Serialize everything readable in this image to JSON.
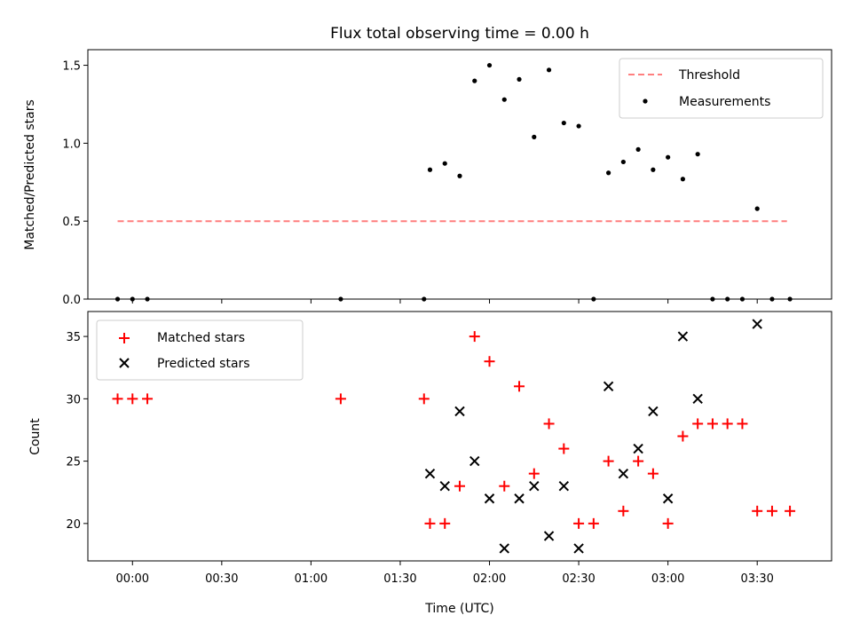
{
  "chart_data": [
    {
      "type": "scatter",
      "title": "Flux total observing time = 0.00 h",
      "xlabel": "",
      "ylabel": "Matched/Predicted stars",
      "xlim": [
        "23:45",
        "03:55"
      ],
      "ylim": [
        0,
        1.6
      ],
      "yticks": [
        "0.0",
        "0.5",
        "1.0",
        "1.5"
      ],
      "grid": false,
      "legend_position": "top-right",
      "threshold": {
        "name": "Threshold",
        "x_start": "23:55",
        "x_end": "03:40",
        "y": 0.5,
        "color": "#ff7f7f"
      },
      "series": [
        {
          "name": "Measurements",
          "color": "#000000",
          "x": [
            "23:55",
            "00:00",
            "00:05",
            "01:10",
            "01:38",
            "01:40",
            "01:45",
            "01:50",
            "01:55",
            "02:00",
            "02:05",
            "02:10",
            "02:15",
            "02:20",
            "02:25",
            "02:30",
            "02:35",
            "02:40",
            "02:45",
            "02:50",
            "02:55",
            "03:00",
            "03:05",
            "03:10",
            "03:15",
            "03:20",
            "03:25",
            "03:30",
            "03:35",
            "03:41"
          ],
          "y": [
            0,
            0,
            0,
            0,
            0,
            0.83,
            0.87,
            0.79,
            1.4,
            1.5,
            1.28,
            1.41,
            1.04,
            1.47,
            1.13,
            1.11,
            0,
            0.81,
            0.88,
            0.96,
            0.83,
            0.91,
            0.77,
            0.93,
            0,
            0,
            0,
            0.58,
            0,
            0
          ]
        }
      ]
    },
    {
      "type": "scatter",
      "title": "",
      "xlabel": "Time (UTC)",
      "ylabel": "Count",
      "xlim": [
        "23:45",
        "03:55"
      ],
      "ylim": [
        17,
        37
      ],
      "xticks": [
        "00:00",
        "00:30",
        "01:00",
        "01:30",
        "02:00",
        "02:30",
        "03:00",
        "03:30"
      ],
      "yticks": [
        "20",
        "25",
        "30",
        "35"
      ],
      "grid": false,
      "legend_position": "top-left",
      "series": [
        {
          "name": "Matched stars",
          "color": "#ff0000",
          "marker": "+",
          "x": [
            "23:55",
            "00:00",
            "00:05",
            "01:10",
            "01:38",
            "01:40",
            "01:45",
            "01:50",
            "01:55",
            "02:00",
            "02:05",
            "02:10",
            "02:15",
            "02:20",
            "02:25",
            "02:30",
            "02:35",
            "02:40",
            "02:45",
            "02:50",
            "02:55",
            "03:00",
            "03:05",
            "03:10",
            "03:15",
            "03:20",
            "03:25",
            "03:30",
            "03:35",
            "03:41"
          ],
          "y": [
            30,
            30,
            30,
            30,
            30,
            20,
            20,
            23,
            35,
            33,
            23,
            31,
            24,
            28,
            26,
            20,
            20,
            25,
            21,
            25,
            24,
            20,
            27,
            28,
            28,
            28,
            28,
            21,
            21,
            21
          ]
        },
        {
          "name": "Predicted stars",
          "color": "#000000",
          "marker": "x",
          "x": [
            "01:40",
            "01:45",
            "01:50",
            "01:55",
            "02:00",
            "02:05",
            "02:10",
            "02:15",
            "02:20",
            "02:25",
            "02:30",
            "02:40",
            "02:45",
            "02:50",
            "02:55",
            "03:00",
            "03:05",
            "03:10",
            "03:30"
          ],
          "y": [
            24,
            23,
            29,
            25,
            22,
            18,
            22,
            23,
            19,
            23,
            18,
            31,
            24,
            26,
            29,
            22,
            35,
            30,
            36
          ]
        }
      ]
    }
  ]
}
